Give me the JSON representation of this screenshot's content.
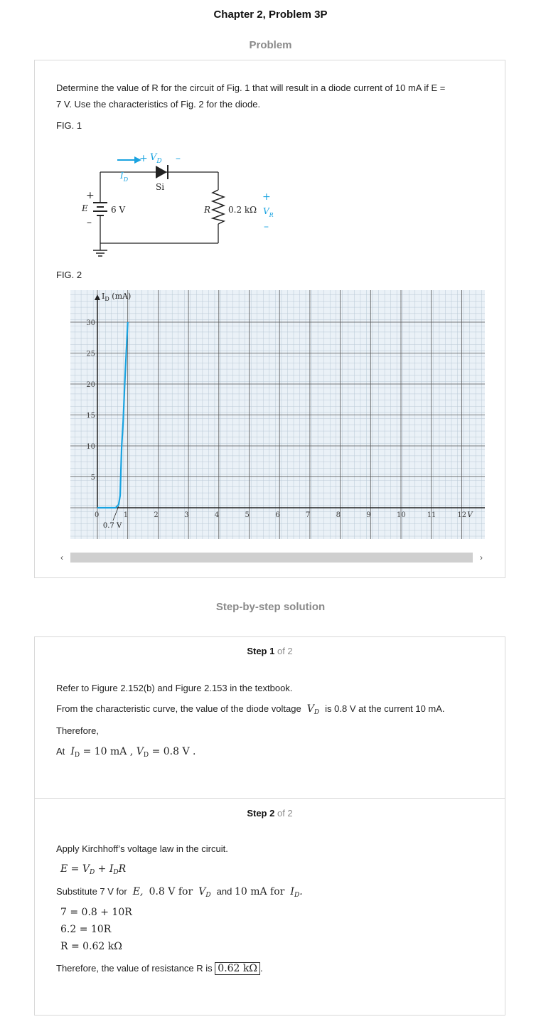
{
  "header": {
    "title": "Chapter 2, Problem 3P",
    "problem_label": "Problem",
    "solution_label": "Step-by-step solution"
  },
  "problem": {
    "text_line1": "Determine the value of R for the circuit of Fig. 1 that will result in a diode current of 10 mA if E =",
    "text_line2": "7 V. Use the characteristics of Fig. 2 for the diode.",
    "fig1_label": "FIG. 1",
    "fig2_label": "FIG. 2"
  },
  "circuit": {
    "vd_plus": "+",
    "vd_label": "V",
    "vd_sub": "D",
    "vd_minus": "–",
    "diode_type": "Si",
    "id_label": "I",
    "id_sub": "D",
    "e_label": "E",
    "e_plus": "+",
    "e_minus": "–",
    "source_value": "6 V",
    "r_label": "R",
    "r_value": "0.2 kΩ",
    "vr_plus": "+",
    "vr_label": "V",
    "vr_sub": "R",
    "vr_minus": "–"
  },
  "chart_data": {
    "type": "line",
    "title": "",
    "ylabel": "I_D (mA)",
    "xlabel": "V_D",
    "xlim": [
      0,
      12
    ],
    "ylim": [
      0,
      30
    ],
    "x_ticks": [
      "0",
      "1",
      "2",
      "3",
      "4",
      "5",
      "6",
      "7",
      "8",
      "9",
      "10",
      "11",
      "12"
    ],
    "y_ticks": [
      "5",
      "10",
      "15",
      "20",
      "25",
      "30"
    ],
    "annotation": "0.7 V",
    "grid": true,
    "series": [
      {
        "color": "#1aa3e0",
        "x": [
          0,
          0.6,
          0.7,
          0.75,
          0.8,
          0.85,
          0.9,
          0.95,
          1.0
        ],
        "y": [
          0,
          0,
          0.5,
          2,
          10,
          14,
          20,
          25,
          30
        ]
      }
    ]
  },
  "scroll": {
    "left_arrow": "‹",
    "right_arrow": "›"
  },
  "step1": {
    "heading": "Step 1",
    "of": "of 2",
    "line1": "Refer to Figure 2.152(b) and Figure 2.153 in the textbook.",
    "line2a": "From the characteristic curve, the value of the diode voltage",
    "line2b": "is 0.8 V at the current 10 mA.",
    "line3": "Therefore,",
    "line4a": "At",
    "eq_id": "= 10 mA ,",
    "eq_vd": "= 0.8 V ."
  },
  "step2": {
    "heading": "Step 2",
    "of": "of 2",
    "line1": "Apply Kirchhoff’s voltage law in the circuit.",
    "eq1": "E = V",
    "eq1b": "+ I",
    "eq1c": "R",
    "sub_text_a": "Substitute 7 V for",
    "sub_text_b": "0.8 V for",
    "sub_text_c": "and",
    "sub_text_d": "10 mA for",
    "calc1": "7 = 0.8 + 10R",
    "calc2": "6.2 = 10R",
    "calc3": "R = 0.62 kΩ",
    "conclusion": "Therefore, the value of resistance R is",
    "answer": "0.62 kΩ"
  }
}
